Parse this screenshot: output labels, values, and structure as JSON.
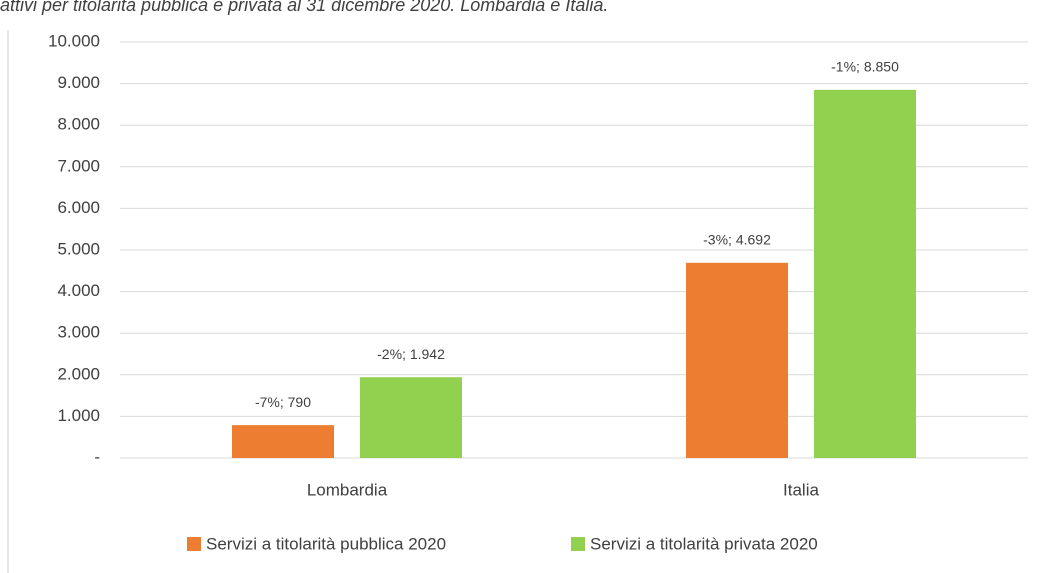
{
  "chart_data": {
    "type": "bar",
    "title": "attivi per titolarità pubblica e privata al 31 dicembre 2020. Lombardia e Italia.",
    "categories": [
      "Lombardia",
      "Italia"
    ],
    "series": [
      {
        "name": "Servizi a titolarità pubblica 2020",
        "color": "#ed7d31",
        "values": [
          790,
          4692
        ],
        "value_labels": [
          "-7%; 790",
          "-3%; 4.692"
        ]
      },
      {
        "name": "Servizi a titolarità privata 2020",
        "color": "#92d050",
        "values": [
          1942,
          8850
        ],
        "value_labels": [
          "-2%; 1.942",
          "-1%; 8.850"
        ]
      }
    ],
    "ylim": [
      0,
      10000
    ],
    "yticks": [
      {
        "value": 0,
        "label": "-"
      },
      {
        "value": 1000,
        "label": "1.000"
      },
      {
        "value": 2000,
        "label": "2.000"
      },
      {
        "value": 3000,
        "label": "3.000"
      },
      {
        "value": 4000,
        "label": "4.000"
      },
      {
        "value": 5000,
        "label": "5.000"
      },
      {
        "value": 6000,
        "label": "6.000"
      },
      {
        "value": 7000,
        "label": "7.000"
      },
      {
        "value": 8000,
        "label": "8.000"
      },
      {
        "value": 9000,
        "label": "9.000"
      },
      {
        "value": 10000,
        "label": "10.000"
      }
    ],
    "grid": true,
    "legend": "bottom"
  }
}
